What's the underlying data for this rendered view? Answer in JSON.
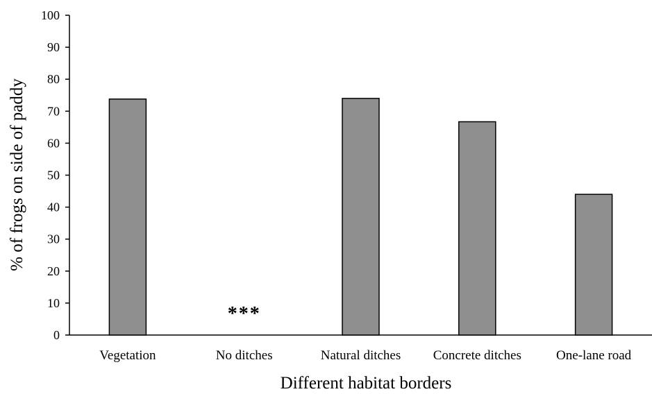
{
  "chart_data": {
    "type": "bar",
    "categories": [
      "Vegetation",
      "No ditches",
      "Natural ditches",
      "Concrete ditches",
      "One-lane road"
    ],
    "values": [
      73.8,
      0,
      74.0,
      66.7,
      44.0
    ],
    "xlabel": "Different habitat borders",
    "ylabel": "% of frogs on side of paddy",
    "ylim": [
      0,
      100
    ],
    "yticks": [
      "0",
      "10",
      "20",
      "30",
      "40",
      "50",
      "60",
      "70",
      "80",
      "90",
      "100"
    ],
    "annotations": [
      {
        "category": "No ditches",
        "text": "***"
      }
    ],
    "bar_color": "#8f8f8f",
    "bar_edge_color": "#000000",
    "grid": false
  }
}
